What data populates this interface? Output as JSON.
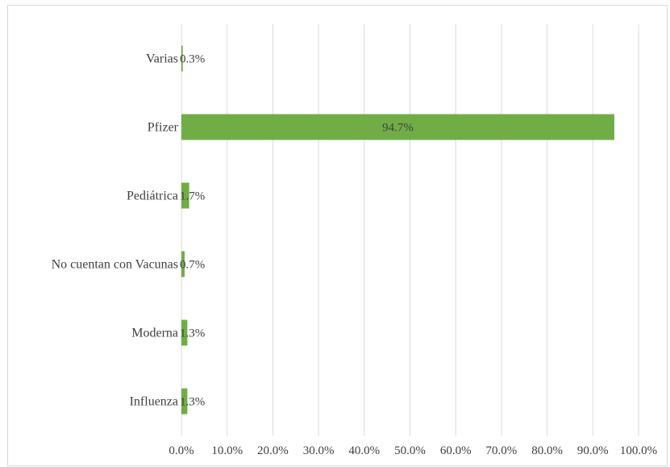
{
  "chart_data": {
    "type": "bar",
    "orientation": "horizontal",
    "title": "",
    "xlabel": "",
    "ylabel": "",
    "categories": [
      "Varias",
      "Pfizer",
      "Pediátrica",
      "No cuentan con Vacunas",
      "Moderna",
      "Influenza"
    ],
    "values": [
      0.3,
      94.7,
      1.7,
      0.7,
      1.3,
      1.3
    ],
    "value_labels": [
      "0.3%",
      "94.7%",
      "1.7%",
      "0.7%",
      "1.3%",
      "1.3%"
    ],
    "xlim": [
      0,
      100
    ],
    "xticks": [
      "0.0%",
      "10.0%",
      "20.0%",
      "30.0%",
      "40.0%",
      "50.0%",
      "60.0%",
      "70.0%",
      "80.0%",
      "90.0%",
      "100.0%"
    ],
    "bar_color": "#70ad47",
    "grid": "vertical",
    "legend": "none"
  }
}
